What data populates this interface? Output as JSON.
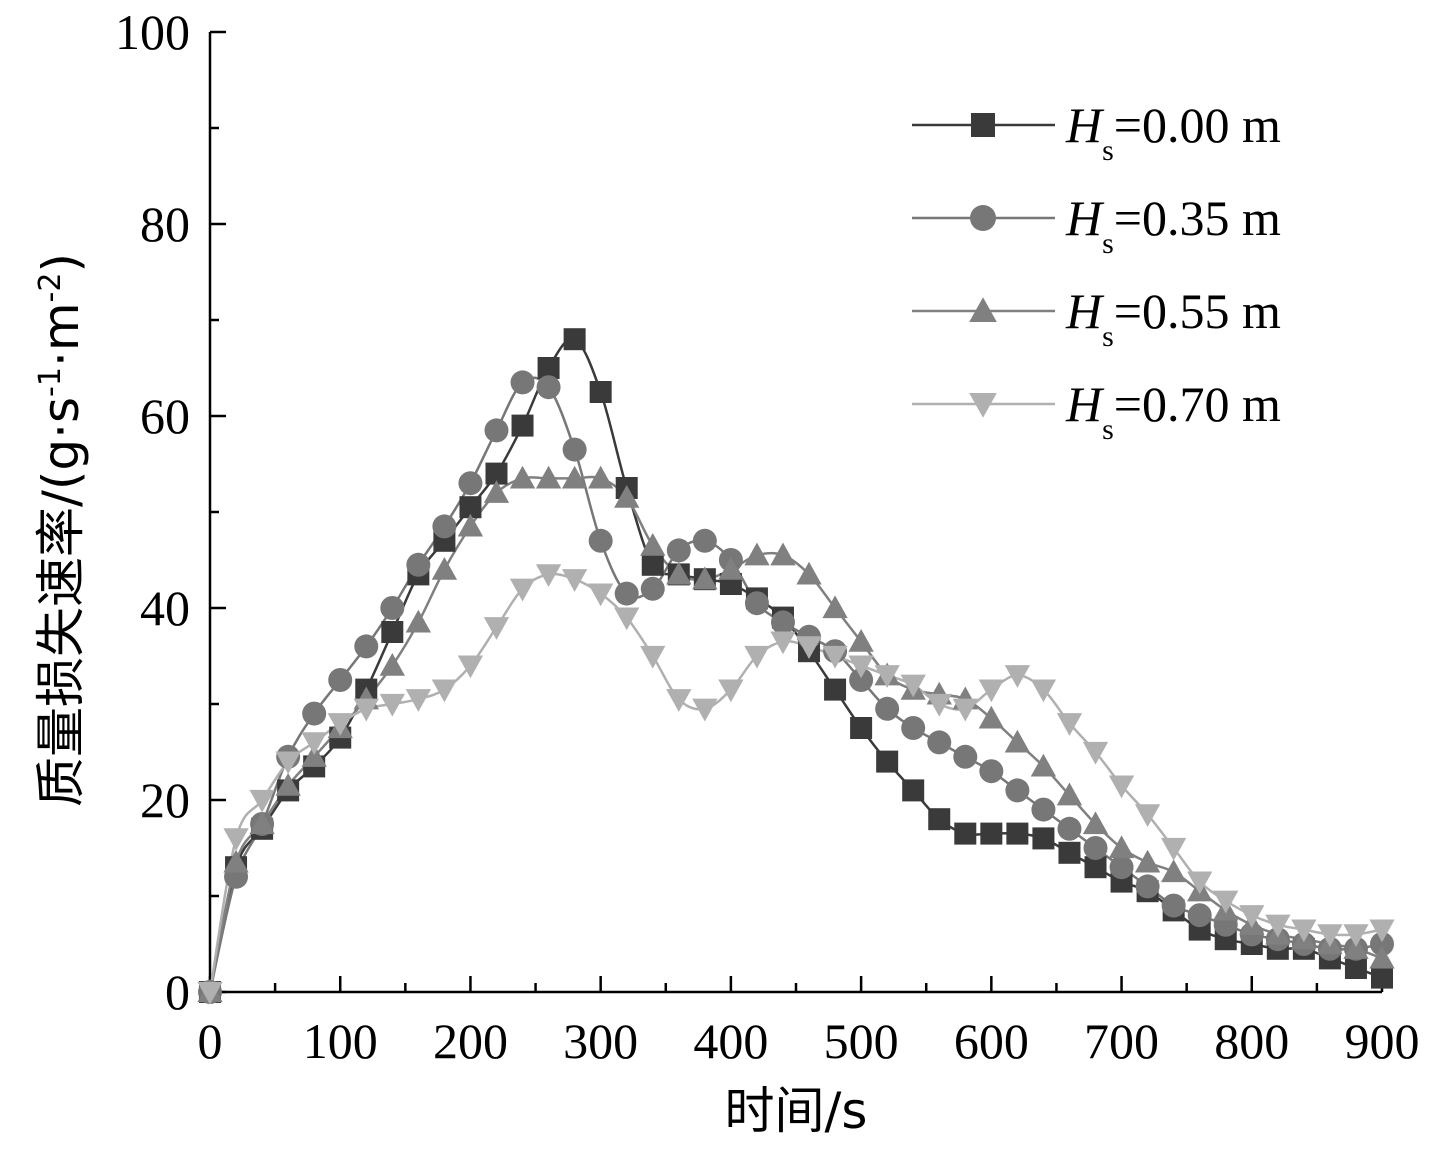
{
  "chart_data": {
    "type": "line",
    "xlabel": "时间/s",
    "ylabel": "质量损失速率/(g·s⁻¹·m⁻²)",
    "ylabel_parts": {
      "prefix": "质量损失速率/(g·s",
      "sup1": "-1",
      "mid": "·m",
      "sup2": "-2",
      "suffix": ")"
    },
    "xlim": [
      0,
      900
    ],
    "ylim": [
      0,
      100
    ],
    "xticks": [
      "0",
      "100",
      "200",
      "300",
      "400",
      "500",
      "600",
      "700",
      "800",
      "900"
    ],
    "yticks": [
      "0",
      "20",
      "40",
      "60",
      "80",
      "100"
    ],
    "grid": false,
    "legend_position": "top-right",
    "x": [
      0,
      20,
      40,
      60,
      80,
      100,
      120,
      140,
      160,
      180,
      200,
      220,
      240,
      260,
      280,
      300,
      320,
      340,
      360,
      380,
      400,
      420,
      440,
      460,
      480,
      500,
      520,
      540,
      560,
      580,
      600,
      620,
      640,
      660,
      680,
      700,
      720,
      740,
      760,
      780,
      800,
      820,
      840,
      860,
      880,
      900
    ],
    "series": [
      {
        "name": "Hs=0.00 m",
        "legend_main": "H",
        "legend_sub": "s",
        "legend_rest": "=0.00 m",
        "marker": "square",
        "color": "#3a3a3a",
        "values": [
          0,
          13,
          17,
          21,
          23.5,
          26.5,
          31.5,
          37.5,
          43.5,
          47,
          50.5,
          54,
          59,
          65,
          68,
          62.5,
          52.5,
          44.5,
          43.5,
          43,
          42.5,
          41,
          39,
          35.5,
          31.5,
          27.5,
          24,
          21,
          18,
          16.5,
          16.5,
          16.5,
          16,
          14.5,
          13,
          11.5,
          10.5,
          8.5,
          6.5,
          5.5,
          5,
          4.5,
          4.5,
          3.5,
          2.5,
          1.5
        ]
      },
      {
        "name": "Hs=0.35 m",
        "legend_main": "H",
        "legend_sub": "s",
        "legend_rest": "=0.35 m",
        "marker": "circle",
        "color": "#777777",
        "values": [
          0,
          12,
          17.5,
          24.5,
          29,
          32.5,
          36,
          40,
          44.5,
          48.5,
          53,
          58.5,
          63.5,
          63,
          56.5,
          47,
          41.5,
          42,
          46,
          47,
          45,
          40.5,
          38.5,
          37,
          35.5,
          32.5,
          29.5,
          27.5,
          26,
          24.5,
          23,
          21,
          19,
          17,
          15,
          13,
          11,
          9,
          8,
          7,
          6,
          5.5,
          5,
          4.5,
          4.5,
          5
        ]
      },
      {
        "name": "Hs=0.55 m",
        "legend_main": "H",
        "legend_sub": "s",
        "legend_rest": "=0.55 m",
        "marker": "triangle-up",
        "color": "#808080",
        "values": [
          0,
          13.5,
          17.5,
          21.5,
          24.5,
          27.5,
          30.5,
          34,
          38.5,
          44,
          48.5,
          52,
          53.5,
          53.5,
          53.5,
          53.5,
          51.5,
          46.5,
          43.5,
          43,
          44,
          45.5,
          45.5,
          43.5,
          40,
          36.5,
          33,
          31.5,
          31,
          30.5,
          28.5,
          26,
          23.5,
          20.5,
          17.5,
          15,
          13.5,
          12.5,
          10.5,
          8.5,
          7,
          6,
          5.5,
          5,
          4.5,
          3.5
        ]
      },
      {
        "name": "Hs=0.70 m",
        "legend_main": "H",
        "legend_sub": "s",
        "legend_rest": "=0.70 m",
        "marker": "triangle-down",
        "color": "#b0b0b0",
        "values": [
          0,
          16,
          20,
          24,
          26,
          28,
          29.5,
          30,
          30.5,
          31.5,
          34,
          38,
          42,
          43.5,
          43,
          41.5,
          39,
          35,
          30.5,
          29.5,
          31.5,
          35,
          36.5,
          36,
          35,
          34,
          33,
          32,
          30,
          29.5,
          31.5,
          33,
          31.5,
          28,
          25,
          21.5,
          18.5,
          15,
          11.5,
          9.5,
          8,
          7,
          6.5,
          6,
          6,
          6.5
        ]
      }
    ]
  }
}
